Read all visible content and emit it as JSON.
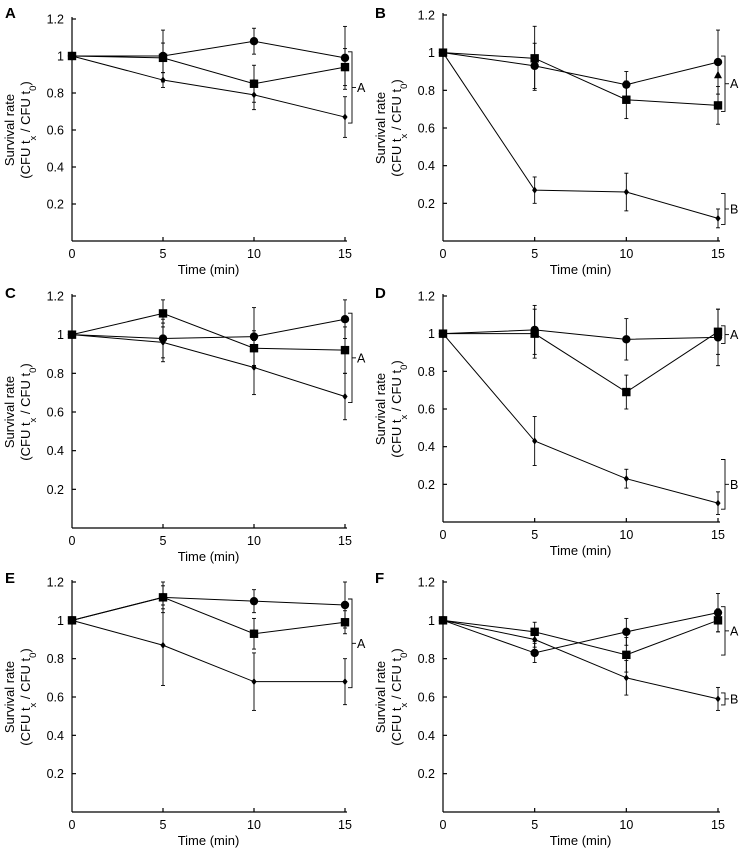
{
  "chart_data": [
    {
      "panel": "A",
      "type": "line",
      "xlabel": "Time (min)",
      "ylabel": "Survival rate",
      "ylabel_sub": [
        "(CFU t",
        "x",
        " / CFU t",
        "0",
        ")"
      ],
      "x": [
        0,
        5,
        10,
        15
      ],
      "xticks": [
        0,
        5,
        10,
        15
      ],
      "yticks": [
        0.2,
        0.4,
        0.6,
        0.8,
        1,
        1.2
      ],
      "xlim": [
        0,
        15
      ],
      "ylim": [
        0,
        1.2
      ],
      "series": [
        {
          "name": "circle",
          "marker": "circle",
          "values": [
            1.0,
            1.0,
            1.08,
            0.99
          ],
          "errors": [
            0,
            0.14,
            0.07,
            0.17
          ]
        },
        {
          "name": "square",
          "marker": "square",
          "values": [
            1.0,
            0.99,
            0.85,
            0.94
          ],
          "errors": [
            0,
            0.08,
            0.1,
            0.1
          ]
        },
        {
          "name": "diamond",
          "marker": "diamond",
          "values": [
            1.0,
            0.87,
            0.79,
            0.67
          ],
          "errors": [
            0,
            0.04,
            0.08,
            0.11
          ]
        }
      ],
      "groups": [
        {
          "label": "A",
          "range": [
            0.67,
            0.99
          ]
        }
      ]
    },
    {
      "panel": "B",
      "type": "line",
      "xlabel": "Time (min)",
      "ylabel": "Survival rate",
      "ylabel_sub": [
        "(CFU t",
        "x",
        " / CFU t",
        "0",
        ")"
      ],
      "x": [
        0,
        5,
        10,
        15
      ],
      "xticks": [
        0,
        5,
        10,
        15
      ],
      "yticks": [
        0.2,
        0.4,
        0.6,
        0.8,
        1,
        1.2
      ],
      "xlim": [
        0,
        15
      ],
      "ylim": [
        0,
        1.2
      ],
      "series": [
        {
          "name": "circle",
          "marker": "circle",
          "values": [
            1.0,
            0.93,
            0.83,
            0.95
          ],
          "errors": [
            0,
            0.12,
            0.07,
            0.17
          ]
        },
        {
          "name": "square",
          "marker": "square",
          "values": [
            1.0,
            0.97,
            0.75,
            0.72
          ],
          "errors": [
            0,
            0.17,
            0.1,
            0.1
          ]
        },
        {
          "name": "diamond",
          "marker": "diamond",
          "values": [
            1.0,
            0.27,
            0.26,
            0.12
          ],
          "errors": [
            0,
            0.07,
            0.1,
            0.05
          ]
        },
        {
          "name": "triangle",
          "marker": "triangle",
          "values": [
            null,
            null,
            null,
            0.88
          ],
          "errors": [
            0,
            0,
            0,
            0
          ]
        }
      ],
      "groups": [
        {
          "label": "A",
          "range": [
            0.72,
            0.95
          ]
        },
        {
          "label": "B",
          "range": [
            0.12,
            0.22
          ]
        }
      ]
    },
    {
      "panel": "C",
      "type": "line",
      "xlabel": "Time (min)",
      "ylabel": "Survival rate",
      "ylabel_sub": [
        "(CFU t",
        "x",
        " / CFU t",
        "0",
        ")"
      ],
      "x": [
        0,
        5,
        10,
        15
      ],
      "xticks": [
        0,
        5,
        10,
        15
      ],
      "yticks": [
        0.2,
        0.4,
        0.6,
        0.8,
        1,
        1.2
      ],
      "xlim": [
        0,
        15
      ],
      "ylim": [
        0,
        1.2
      ],
      "series": [
        {
          "name": "circle",
          "marker": "circle",
          "values": [
            1.0,
            0.98,
            0.99,
            1.08
          ],
          "errors": [
            0,
            0.1,
            0.15,
            0.1
          ]
        },
        {
          "name": "square",
          "marker": "square",
          "values": [
            1.0,
            1.11,
            0.93,
            0.92
          ],
          "errors": [
            0,
            0.07,
            0.09,
            0.12
          ]
        },
        {
          "name": "diamond",
          "marker": "diamond",
          "values": [
            1.0,
            0.96,
            0.83,
            0.68
          ],
          "errors": [
            0,
            0.1,
            0.14,
            0.12
          ]
        }
      ],
      "groups": [
        {
          "label": "A",
          "range": [
            0.68,
            1.08
          ]
        }
      ]
    },
    {
      "panel": "D",
      "type": "line",
      "xlabel": "Time (min)",
      "ylabel": "Survival rate",
      "ylabel_sub": [
        "(CFU t",
        "x",
        " / CFU t",
        "0",
        ")"
      ],
      "x": [
        0,
        5,
        10,
        15
      ],
      "xticks": [
        0,
        5,
        10,
        15
      ],
      "yticks": [
        0.2,
        0.4,
        0.6,
        0.8,
        1,
        1.2
      ],
      "xlim": [
        0,
        15
      ],
      "ylim": [
        0,
        1.2
      ],
      "series": [
        {
          "name": "circle",
          "marker": "circle",
          "values": [
            1.0,
            1.02,
            0.97,
            0.98
          ],
          "errors": [
            0,
            0.13,
            0.11,
            0.15
          ]
        },
        {
          "name": "square",
          "marker": "square",
          "values": [
            1.0,
            1.0,
            0.69,
            1.01
          ],
          "errors": [
            0,
            0.13,
            0.09,
            0.12
          ]
        },
        {
          "name": "diamond",
          "marker": "diamond",
          "values": [
            1.0,
            0.43,
            0.23,
            0.1
          ],
          "errors": [
            0,
            0.13,
            0.05,
            0.06
          ]
        }
      ],
      "groups": [
        {
          "label": "A",
          "range": [
            0.98,
            1.01
          ]
        },
        {
          "label": "B",
          "range": [
            0.1,
            0.3
          ]
        }
      ]
    },
    {
      "panel": "E",
      "type": "line",
      "xlabel": "Time (min)",
      "ylabel": "Survival rate",
      "ylabel_sub": [
        "(CFU t",
        "x",
        " / CFU t",
        "0",
        ")"
      ],
      "x": [
        0,
        5,
        10,
        15
      ],
      "xticks": [
        0,
        5,
        10,
        15
      ],
      "yticks": [
        0.2,
        0.4,
        0.6,
        0.8,
        1,
        1.2
      ],
      "xlim": [
        0,
        15
      ],
      "ylim": [
        0,
        1.2
      ],
      "series": [
        {
          "name": "circle",
          "marker": "circle",
          "values": [
            1.0,
            1.12,
            1.1,
            1.08
          ],
          "errors": [
            0,
            0.08,
            0.06,
            0.12
          ]
        },
        {
          "name": "square",
          "marker": "square",
          "values": [
            1.0,
            1.12,
            0.93,
            0.99
          ],
          "errors": [
            0,
            0.06,
            0.08,
            0.06
          ]
        },
        {
          "name": "diamond",
          "marker": "diamond",
          "values": [
            1.0,
            0.87,
            0.68,
            0.68
          ],
          "errors": [
            0,
            0.21,
            0.15,
            0.12
          ]
        }
      ],
      "groups": [
        {
          "label": "A",
          "range": [
            0.68,
            1.08
          ]
        }
      ]
    },
    {
      "panel": "F",
      "type": "line",
      "xlabel": "Time (min)",
      "ylabel": "Survival rate",
      "ylabel_sub": [
        "(CFU t",
        "x",
        " / CFU t",
        "0",
        ")"
      ],
      "x": [
        0,
        5,
        10,
        15
      ],
      "xticks": [
        0,
        5,
        10,
        15
      ],
      "yticks": [
        0.2,
        0.4,
        0.6,
        0.8,
        1,
        1.2
      ],
      "xlim": [
        0,
        15
      ],
      "ylim": [
        0,
        1.2
      ],
      "series": [
        {
          "name": "circle",
          "marker": "circle",
          "values": [
            1.0,
            0.83,
            0.94,
            1.04
          ],
          "errors": [
            0,
            0.05,
            0.07,
            0.1
          ]
        },
        {
          "name": "square",
          "marker": "square",
          "values": [
            1.0,
            0.94,
            0.82,
            1.0
          ],
          "errors": [
            0,
            0.05,
            0.09,
            0.06
          ]
        },
        {
          "name": "diamond",
          "marker": "diamond",
          "values": [
            1.0,
            0.9,
            0.7,
            0.59
          ],
          "errors": [
            0,
            0.04,
            0.09,
            0.06
          ]
        }
      ],
      "groups": [
        {
          "label": "A",
          "range": [
            0.85,
            1.04
          ]
        },
        {
          "label": "B",
          "range": [
            0.59,
            0.59
          ]
        }
      ]
    }
  ]
}
